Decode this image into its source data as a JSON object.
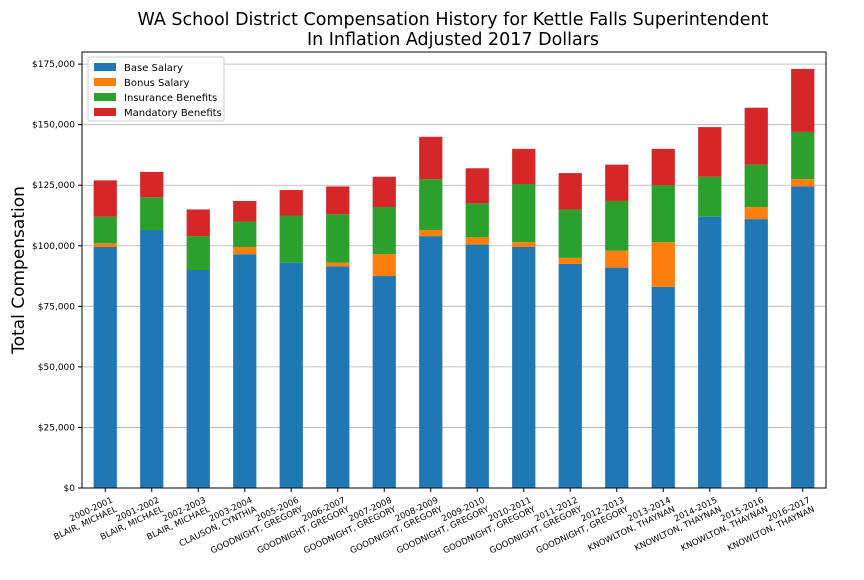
{
  "chart_data": {
    "type": "bar",
    "stacked": true,
    "title": [
      "WA School District Compensation History for Kettle Falls Superintendent",
      "In Inflation Adjusted 2017 Dollars"
    ],
    "xlabel": "",
    "ylabel": "Total Compensation",
    "ylim": [
      0,
      180000
    ],
    "yticks": [
      0,
      25000,
      50000,
      75000,
      100000,
      125000,
      150000,
      175000
    ],
    "ytick_labels": [
      "$0",
      "$25,000",
      "$50,000",
      "$75,000",
      "$100,000",
      "$125,000",
      "$150,000",
      "$175,000"
    ],
    "grid": "y",
    "legend_position": "top-left",
    "categories": [
      [
        "2000-2001",
        "BLAIR, MICHAEL"
      ],
      [
        "2001-2002",
        "BLAIR, MICHAEL"
      ],
      [
        "2002-2003",
        "BLAIR, MICHAEL"
      ],
      [
        "2003-2004",
        "CLAUSON, CYNTHIA"
      ],
      [
        "2005-2006",
        "GOODNIGHT, GREGORY"
      ],
      [
        "2006-2007",
        "GOODNIGHT, GREGORY"
      ],
      [
        "2007-2008",
        "GOODNIGHT, GREGORY"
      ],
      [
        "2008-2009",
        "GOODNIGHT, GREGORY"
      ],
      [
        "2009-2010",
        "GOODNIGHT, GREGORY"
      ],
      [
        "2010-2011",
        "GOODNIGHT, GREGORY"
      ],
      [
        "2011-2012",
        "GOODNIGHT, GREGORY"
      ],
      [
        "2012-2013",
        "GOODNIGHT, GREGORY"
      ],
      [
        "2013-2014",
        "KNOWLTON, THAYNAN"
      ],
      [
        "2014-2015",
        "KNOWLTON, THAYNAN"
      ],
      [
        "2015-2016",
        "KNOWLTON, THAYNAN"
      ],
      [
        "2016-2017",
        "KNOWLTON, THAYNAN"
      ]
    ],
    "series": [
      {
        "name": "Base Salary",
        "color": "#1f77b4",
        "values": [
          99500,
          106500,
          90000,
          96500,
          93000,
          91500,
          87500,
          104000,
          100500,
          99500,
          92500,
          91000,
          83000,
          112000,
          111000,
          124500
        ]
      },
      {
        "name": "Bonus Salary",
        "color": "#ff7f0e",
        "values": [
          1500,
          0,
          0,
          3000,
          0,
          1500,
          9000,
          2500,
          3000,
          2000,
          2500,
          7000,
          18500,
          0,
          5000,
          3000
        ]
      },
      {
        "name": "Insurance Benefits",
        "color": "#2ca02c",
        "values": [
          11000,
          13500,
          14000,
          10500,
          19500,
          20000,
          19500,
          21000,
          14000,
          24000,
          20000,
          20500,
          23500,
          16500,
          17500,
          19500
        ]
      },
      {
        "name": "Mandatory Benefits",
        "color": "#d62728",
        "values": [
          15000,
          10500,
          11000,
          8500,
          10500,
          11500,
          12500,
          17500,
          14500,
          14500,
          15000,
          15000,
          15000,
          20500,
          23500,
          26000
        ]
      }
    ]
  }
}
